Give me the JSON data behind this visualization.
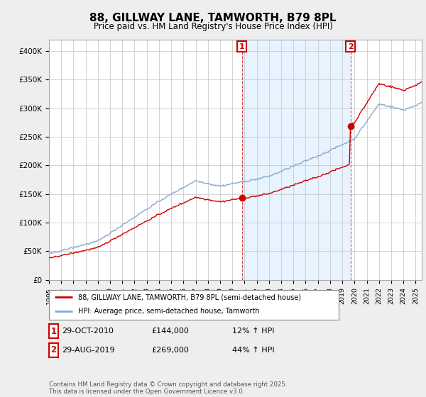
{
  "title": "88, GILLWAY LANE, TAMWORTH, B79 8PL",
  "subtitle": "Price paid vs. HM Land Registry's House Price Index (HPI)",
  "ylabel_ticks": [
    "£0",
    "£50K",
    "£100K",
    "£150K",
    "£200K",
    "£250K",
    "£300K",
    "£350K",
    "£400K"
  ],
  "ytick_values": [
    0,
    50000,
    100000,
    150000,
    200000,
    250000,
    300000,
    350000,
    400000
  ],
  "ylim": [
    0,
    420000
  ],
  "fig_bg_color": "#f0f0f0",
  "plot_bg_color": "#ffffff",
  "red_color": "#cc0000",
  "blue_color": "#88aacc",
  "shade_color": "#ddeeff",
  "legend_label_red": "88, GILLWAY LANE, TAMWORTH, B79 8PL (semi-detached house)",
  "legend_label_blue": "HPI: Average price, semi-detached house, Tamworth",
  "marker1_label": "1",
  "marker1_date": "29-OCT-2010",
  "marker1_price": "£144,000",
  "marker1_hpi": "12% ↑ HPI",
  "marker1_year": 2010.79,
  "marker1_value": 144000,
  "marker2_label": "2",
  "marker2_date": "29-AUG-2019",
  "marker2_price": "£269,000",
  "marker2_hpi": "44% ↑ HPI",
  "marker2_year": 2019.67,
  "marker2_value": 269000,
  "footer": "Contains HM Land Registry data © Crown copyright and database right 2025.\nThis data is licensed under the Open Government Licence v3.0.",
  "xstart_year": 1995,
  "xend_year": 2025
}
